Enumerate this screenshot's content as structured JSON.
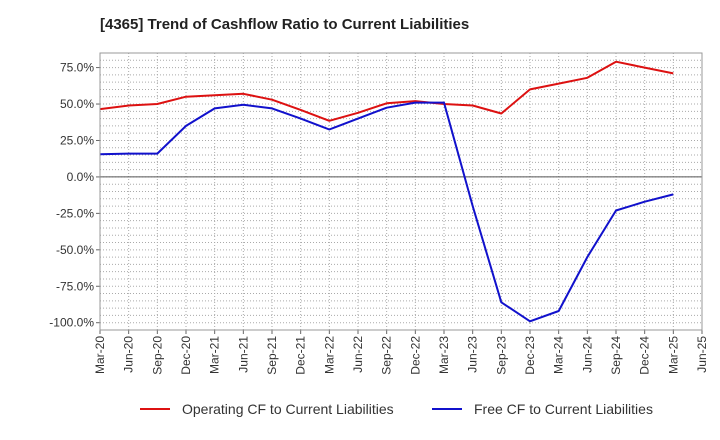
{
  "chart_data": {
    "type": "line",
    "title": "[4365]  Trend of Cashflow Ratio to Current Liabilities",
    "xlabel": "",
    "ylabel": "",
    "categories": [
      "Mar-20",
      "Jun-20",
      "Sep-20",
      "Dec-20",
      "Mar-21",
      "Jun-21",
      "Sep-21",
      "Dec-21",
      "Mar-22",
      "Jun-22",
      "Sep-22",
      "Dec-22",
      "Mar-23",
      "Jun-23",
      "Sep-23",
      "Dec-23",
      "Mar-24",
      "Jun-24",
      "Sep-24",
      "Dec-24",
      "Mar-25",
      "Jun-25"
    ],
    "ylim": [
      -105,
      85
    ],
    "yticks": [
      75,
      50,
      25,
      0,
      -25,
      -50,
      -75,
      -100
    ],
    "ytick_labels": [
      "75.0%",
      "50.0%",
      "25.0%",
      "0.0%",
      "-25.0%",
      "-50.0%",
      "-75.0%",
      "-100.0%"
    ],
    "grid": true,
    "legend_position": "bottom",
    "series": [
      {
        "name": "Operating CF to Current Liabilities",
        "color": "#dd1111",
        "values": [
          46.5,
          49.0,
          50.0,
          55.0,
          56.0,
          57.0,
          53.0,
          46.0,
          38.5,
          44.0,
          50.5,
          52.0,
          50.0,
          49.0,
          43.5,
          60.0,
          64.0,
          68.0,
          79.0,
          75.0,
          71.0,
          null
        ]
      },
      {
        "name": "Free CF to Current Liabilities",
        "color": "#1111cc",
        "values": [
          15.5,
          16.0,
          16.0,
          35.0,
          47.0,
          49.5,
          47.0,
          40.0,
          32.5,
          40.0,
          47.5,
          51.0,
          51.0,
          -20.0,
          -86.0,
          -99.0,
          -92.0,
          -55.0,
          -23.0,
          -17.0,
          -12.0,
          null
        ]
      }
    ]
  }
}
